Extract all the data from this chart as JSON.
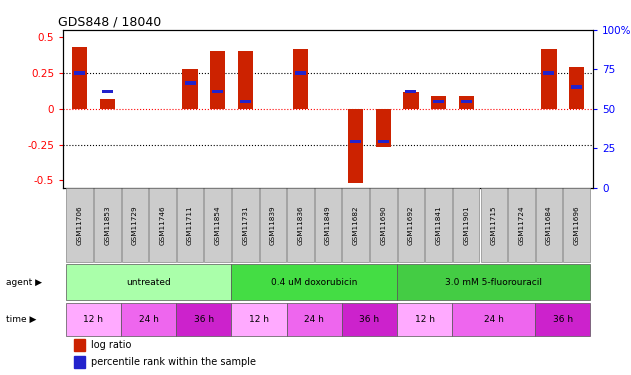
{
  "title": "GDS848 / 18040",
  "samples": [
    "GSM11706",
    "GSM11853",
    "GSM11729",
    "GSM11746",
    "GSM11711",
    "GSM11854",
    "GSM11731",
    "GSM11839",
    "GSM11836",
    "GSM11849",
    "GSM11682",
    "GSM11690",
    "GSM11692",
    "GSM11841",
    "GSM11901",
    "GSM11715",
    "GSM11724",
    "GSM11684",
    "GSM11696"
  ],
  "log_ratio": [
    0.43,
    0.07,
    0.0,
    0.0,
    0.28,
    0.4,
    0.4,
    0.0,
    0.42,
    0.0,
    -0.52,
    -0.27,
    0.12,
    0.09,
    0.09,
    0.0,
    0.0,
    0.42,
    0.29
  ],
  "percentile": [
    75,
    62,
    0,
    0,
    68,
    62,
    55,
    0,
    75,
    0,
    27,
    27,
    62,
    55,
    55,
    0,
    0,
    75,
    65
  ],
  "agents": [
    {
      "label": "untreated",
      "start": 0,
      "end": 6,
      "color": "#aaffaa"
    },
    {
      "label": "0.4 uM doxorubicin",
      "start": 6,
      "end": 12,
      "color": "#44dd44"
    },
    {
      "label": "3.0 mM 5-fluorouracil",
      "start": 12,
      "end": 19,
      "color": "#44cc44"
    }
  ],
  "times": [
    {
      "label": "12 h",
      "start": 0,
      "end": 2,
      "color": "#ffaaff"
    },
    {
      "label": "24 h",
      "start": 2,
      "end": 4,
      "color": "#ee66ee"
    },
    {
      "label": "36 h",
      "start": 4,
      "end": 6,
      "color": "#cc22cc"
    },
    {
      "label": "12 h",
      "start": 6,
      "end": 8,
      "color": "#ffaaff"
    },
    {
      "label": "24 h",
      "start": 8,
      "end": 10,
      "color": "#ee66ee"
    },
    {
      "label": "36 h",
      "start": 10,
      "end": 12,
      "color": "#cc22cc"
    },
    {
      "label": "12 h",
      "start": 12,
      "end": 14,
      "color": "#ffaaff"
    },
    {
      "label": "24 h",
      "start": 14,
      "end": 17,
      "color": "#ee66ee"
    },
    {
      "label": "36 h",
      "start": 17,
      "end": 19,
      "color": "#cc22cc"
    }
  ],
  "bar_color": "#cc2200",
  "dot_color": "#2222cc",
  "ylim": [
    -0.55,
    0.55
  ],
  "yticks_left": [
    -0.5,
    -0.25,
    0.0,
    0.25,
    0.5
  ],
  "yticks_right": [
    0,
    25,
    50,
    75,
    100
  ],
  "bg_color": "#ffffff"
}
